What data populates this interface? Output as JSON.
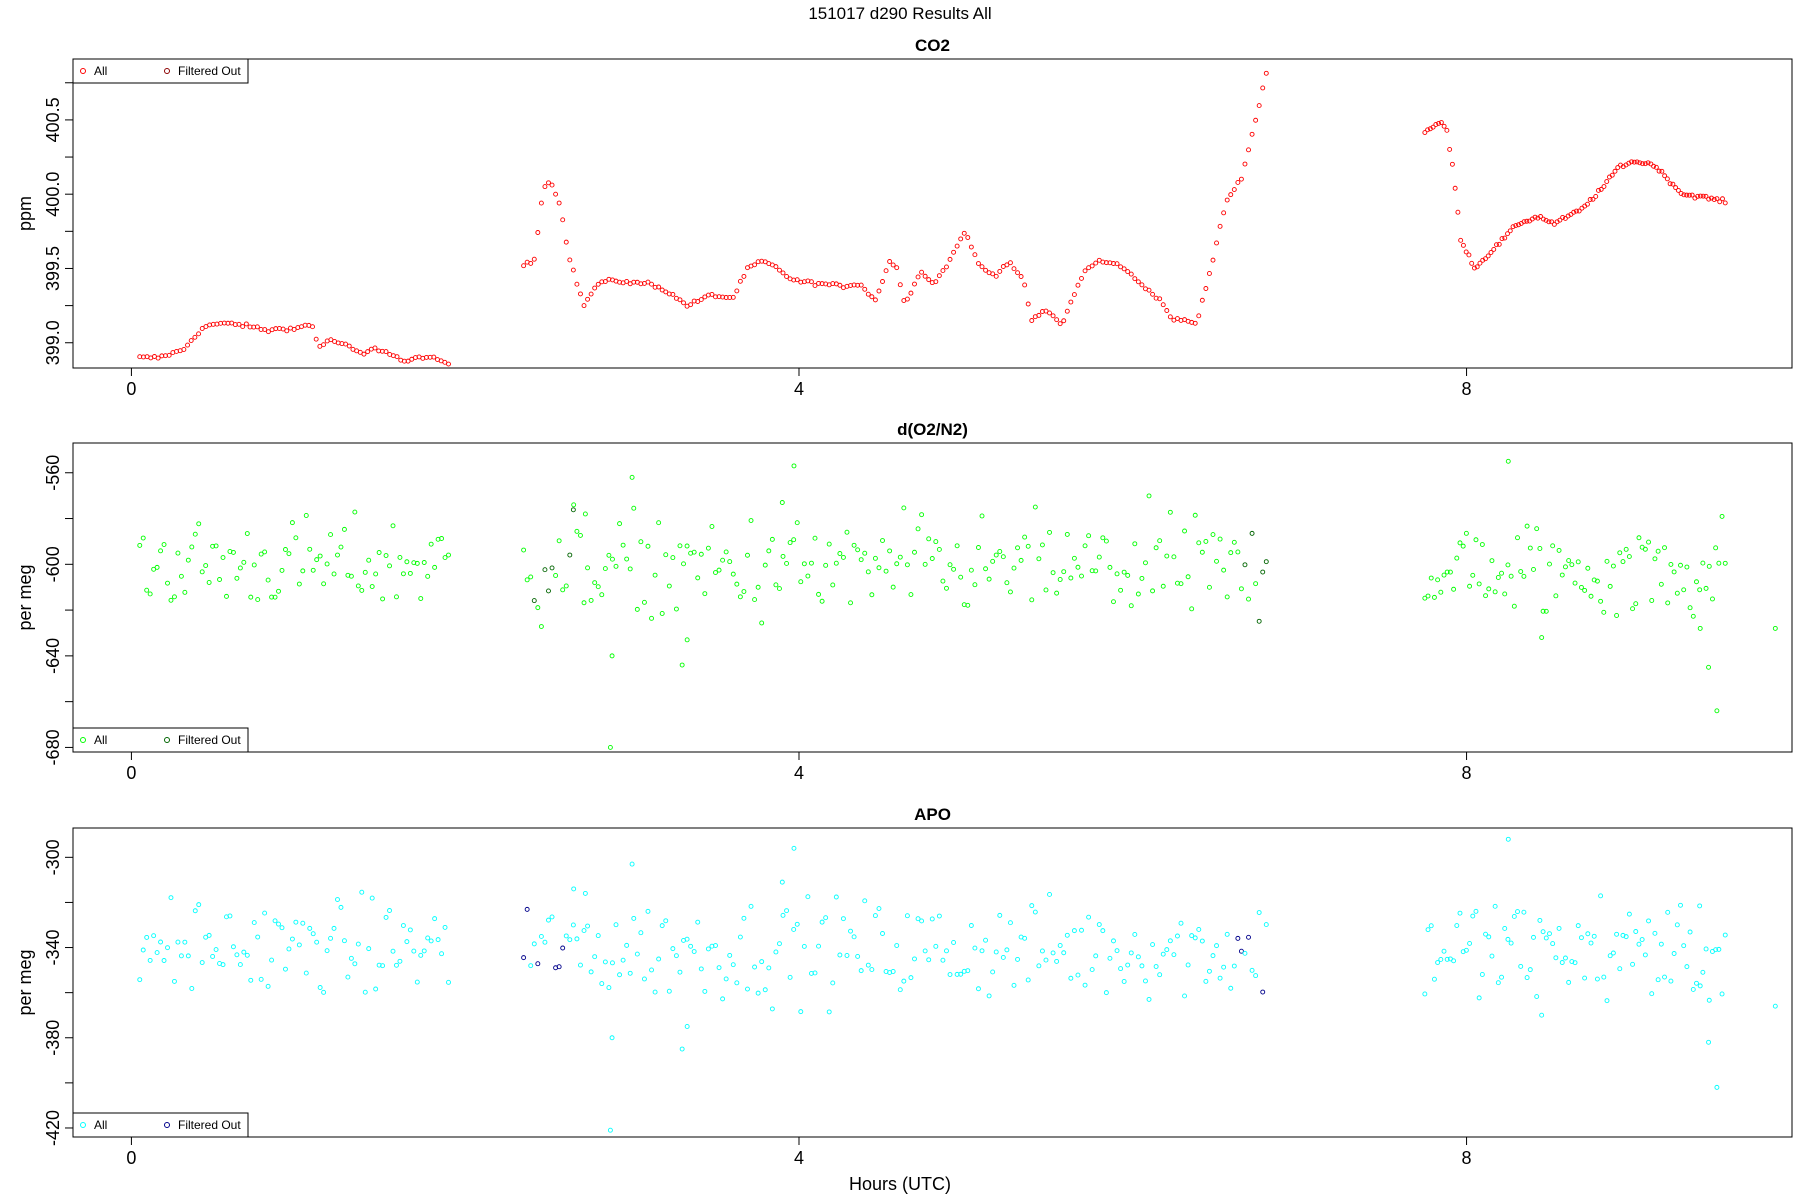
{
  "figure": {
    "title": "151017   d290   Results All",
    "xlabel": "Hours (UTC)"
  },
  "colors": {
    "co2_all": "#ff0000",
    "co2_filtered": "#8b0000",
    "o2_all": "#00ff00",
    "o2_filtered": "#006400",
    "apo_all": "#00ffff",
    "apo_filtered": "#00008b"
  },
  "chart_data": [
    {
      "type": "scatter",
      "title": "CO2",
      "xlabel": "Hours (UTC)",
      "ylabel": "ppm",
      "xlim": [
        -0.35,
        9.95
      ],
      "ylim": [
        398.83,
        400.91
      ],
      "xticks": [
        0,
        4,
        8
      ],
      "yticks": [
        399.0,
        399.5,
        400.0,
        400.5
      ],
      "ytick_labels": [
        "399.0",
        "399.5",
        "400.0",
        "400.5"
      ],
      "grid": false,
      "legend": {
        "position": "top-left",
        "entries": [
          "All",
          "Filtered Out"
        ]
      },
      "series": [
        {
          "name": "All",
          "color": "#ff0000",
          "kind": "co2_all"
        },
        {
          "name": "Filtered Out",
          "color": "#8b0000",
          "kind": "co2_filtered"
        }
      ],
      "segments": [
        {
          "x0": 0.05,
          "x1": 1.9,
          "n": 85,
          "anchors": [
            [
              0.05,
              398.9
            ],
            [
              0.2,
              398.9
            ],
            [
              0.4,
              398.95
            ],
            [
              0.5,
              399.05
            ],
            [
              0.6,
              399.12
            ],
            [
              0.8,
              399.13
            ],
            [
              1.0,
              399.1
            ],
            [
              1.1,
              399.08
            ],
            [
              1.2,
              399.1
            ],
            [
              1.3,
              399.09
            ],
            [
              1.4,
              399.12
            ],
            [
              1.45,
              399.11
            ],
            [
              1.5,
              398.97
            ],
            [
              1.6,
              399.02
            ],
            [
              1.75,
              398.97
            ],
            [
              1.85,
              398.92
            ],
            [
              1.95,
              398.96
            ],
            [
              2.05,
              398.94
            ],
            [
              2.2,
              398.87
            ],
            [
              2.35,
              398.91
            ],
            [
              2.55,
              398.86
            ]
          ]
        },
        {
          "x0": 2.35,
          "x1": 6.8,
          "n": 210,
          "anchors": [
            [
              2.35,
              399.52
            ],
            [
              2.42,
              399.55
            ],
            [
              2.47,
              399.95
            ],
            [
              2.5,
              400.1
            ],
            [
              2.55,
              400.05
            ],
            [
              2.6,
              399.9
            ],
            [
              2.65,
              399.6
            ],
            [
              2.75,
              399.25
            ],
            [
              2.85,
              399.4
            ],
            [
              2.95,
              399.42
            ],
            [
              3.1,
              399.4
            ],
            [
              3.2,
              399.4
            ],
            [
              3.3,
              399.35
            ],
            [
              3.45,
              399.25
            ],
            [
              3.6,
              399.32
            ],
            [
              3.75,
              399.3
            ],
            [
              3.85,
              399.5
            ],
            [
              3.95,
              399.55
            ],
            [
              4.05,
              399.5
            ],
            [
              4.15,
              399.42
            ],
            [
              4.3,
              399.4
            ],
            [
              4.5,
              399.38
            ],
            [
              4.6,
              399.4
            ],
            [
              4.7,
              399.28
            ],
            [
              4.8,
              399.55
            ],
            [
              4.85,
              399.5
            ],
            [
              4.9,
              399.25
            ],
            [
              5.0,
              399.48
            ],
            [
              5.1,
              399.4
            ],
            [
              5.2,
              399.55
            ],
            [
              5.3,
              399.75
            ],
            [
              5.4,
              399.52
            ],
            [
              5.5,
              399.45
            ],
            [
              5.6,
              399.55
            ],
            [
              5.7,
              399.4
            ],
            [
              5.75,
              399.15
            ],
            [
              5.85,
              399.22
            ],
            [
              5.95,
              399.12
            ],
            [
              6.1,
              399.48
            ],
            [
              6.2,
              399.55
            ],
            [
              6.35,
              399.52
            ],
            [
              6.45,
              399.42
            ],
            [
              6.6,
              399.3
            ],
            [
              6.7,
              399.15
            ],
            [
              6.8,
              399.15
            ],
            [
              6.85,
              399.12
            ],
            [
              6.95,
              399.5
            ],
            [
              7.05,
              399.95
            ],
            [
              7.15,
              400.1
            ],
            [
              7.25,
              400.5
            ],
            [
              7.32,
              400.82
            ]
          ]
        },
        {
          "x0": 7.75,
          "x1": 9.55,
          "n": 110,
          "anchors": [
            [
              7.75,
              400.42
            ],
            [
              7.85,
              400.48
            ],
            [
              7.9,
              400.45
            ],
            [
              7.95,
              400.15
            ],
            [
              8.0,
              399.7
            ],
            [
              8.1,
              399.5
            ],
            [
              8.2,
              399.6
            ],
            [
              8.3,
              399.7
            ],
            [
              8.4,
              399.8
            ],
            [
              8.55,
              399.85
            ],
            [
              8.65,
              399.8
            ],
            [
              8.75,
              399.85
            ],
            [
              8.85,
              399.9
            ],
            [
              9.0,
              400.05
            ],
            [
              9.1,
              400.18
            ],
            [
              9.2,
              400.22
            ],
            [
              9.35,
              400.2
            ],
            [
              9.45,
              400.1
            ],
            [
              9.55,
              400.0
            ],
            [
              9.7,
              399.98
            ],
            [
              9.85,
              399.95
            ]
          ]
        }
      ]
    },
    {
      "type": "scatter",
      "title": "d(O2/N2)",
      "xlabel": "Hours (UTC)",
      "ylabel": "per meg",
      "xlim": [
        -0.35,
        9.95
      ],
      "ylim": [
        -682,
        -547
      ],
      "xticks": [
        0,
        4,
        8
      ],
      "yticks": [
        -680,
        -640,
        -600,
        -560
      ],
      "ytick_labels": [
        "-680",
        "-640",
        "-600",
        "-560"
      ],
      "grid": false,
      "legend": {
        "position": "bottom-left",
        "entries": [
          "All",
          "Filtered Out"
        ]
      },
      "series": [
        {
          "name": "All",
          "color": "#00ff00",
          "kind": "o2_all"
        },
        {
          "name": "Filtered Out",
          "color": "#006400",
          "kind": "o2_filtered"
        }
      ],
      "segments": [
        {
          "x0": 0.05,
          "x1": 1.9,
          "n": 90,
          "center": -600,
          "spread": 10
        },
        {
          "x0": 2.35,
          "x1": 6.8,
          "n": 210,
          "center": -602,
          "spread": 11
        },
        {
          "x0": 7.75,
          "x1": 9.55,
          "n": 95,
          "center": -603,
          "spread": 11
        }
      ],
      "outliers": [
        [
          2.87,
          -680
        ],
        [
          2.88,
          -640
        ],
        [
          3.3,
          -644
        ],
        [
          3.33,
          -633
        ],
        [
          3.97,
          -557
        ],
        [
          3.9,
          -573
        ],
        [
          2.72,
          -578
        ],
        [
          2.65,
          -574
        ],
        [
          3.0,
          -562
        ],
        [
          8.25,
          -555
        ],
        [
          8.45,
          -632
        ],
        [
          9.45,
          -645
        ],
        [
          9.5,
          -664
        ],
        [
          9.4,
          -628
        ],
        [
          9.85,
          -628
        ]
      ],
      "filtered_x_ranges": [
        [
          2.35,
          2.65
        ],
        [
          6.6,
          6.8
        ]
      ]
    },
    {
      "type": "scatter",
      "title": "APO",
      "xlabel": "Hours (UTC)",
      "ylabel": "per meg",
      "xlim": [
        -0.35,
        9.95
      ],
      "ylim": [
        -424,
        -287
      ],
      "xticks": [
        0,
        4,
        8
      ],
      "yticks": [
        -420,
        -380,
        -340,
        -300
      ],
      "ytick_labels": [
        "-420",
        "-380",
        "-340",
        "-300"
      ],
      "grid": false,
      "legend": {
        "position": "bottom-left",
        "entries": [
          "All",
          "Filtered Out"
        ]
      },
      "series": [
        {
          "name": "All",
          "color": "#00ffff",
          "kind": "apo_all"
        },
        {
          "name": "Filtered Out",
          "color": "#00008b",
          "kind": "apo_filtered"
        }
      ],
      "segments": [
        {
          "x0": 0.05,
          "x1": 1.9,
          "n": 90,
          "center": -340,
          "spread": 10
        },
        {
          "x0": 2.35,
          "x1": 6.8,
          "n": 210,
          "center": -341,
          "spread": 11
        },
        {
          "x0": 7.75,
          "x1": 9.55,
          "n": 95,
          "center": -341,
          "spread": 11
        }
      ],
      "outliers": [
        [
          2.87,
          -421
        ],
        [
          2.88,
          -380
        ],
        [
          3.3,
          -385
        ],
        [
          3.33,
          -375
        ],
        [
          3.97,
          -296
        ],
        [
          3.9,
          -311
        ],
        [
          2.72,
          -316
        ],
        [
          2.65,
          -314
        ],
        [
          3.0,
          -303
        ],
        [
          8.25,
          -292
        ],
        [
          8.45,
          -370
        ],
        [
          9.45,
          -382
        ],
        [
          9.5,
          -402
        ],
        [
          9.4,
          -357
        ],
        [
          9.85,
          -366
        ]
      ],
      "filtered_x_ranges": [
        [
          2.35,
          2.65
        ],
        [
          6.6,
          6.8
        ]
      ]
    }
  ]
}
